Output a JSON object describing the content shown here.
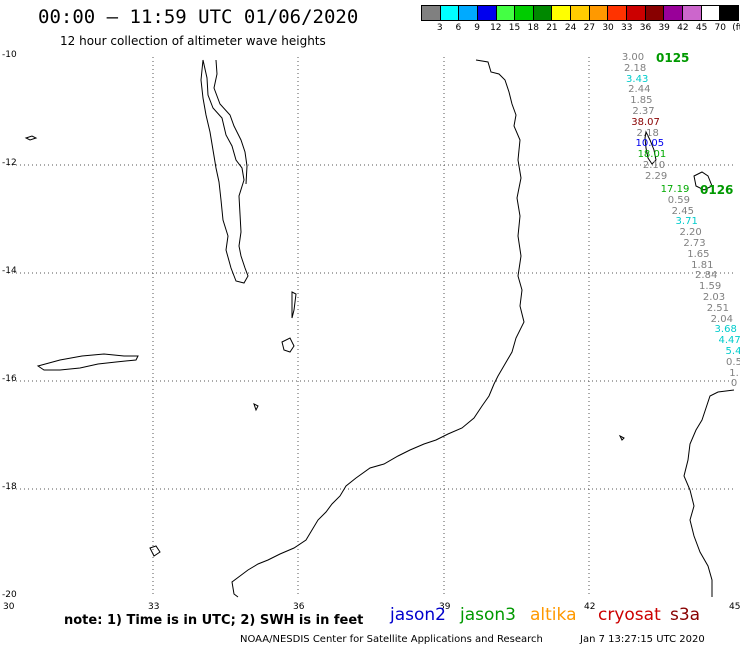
{
  "header": {
    "title": "00:00 – 11:59 UTC 01/06/2020",
    "subtitle": "12 hour collection of altimeter wave heights"
  },
  "scale": {
    "colors": [
      "#808080",
      "#00ffff",
      "#00aaff",
      "#0000ee",
      "#44ff44",
      "#00cc00",
      "#008800",
      "#ffff00",
      "#ffcc00",
      "#ff9900",
      "#ff3300",
      "#cc0000",
      "#880000",
      "#990099",
      "#cc66cc",
      "#ffffff",
      "#000000"
    ],
    "labels": [
      "3",
      "6",
      "9",
      "12",
      "15",
      "18",
      "21",
      "24",
      "27",
      "30",
      "33",
      "36",
      "39",
      "42",
      "45",
      "70",
      "(ft)"
    ]
  },
  "axes": {
    "lon": [
      "30",
      "33",
      "36",
      "39",
      "42",
      "45"
    ],
    "lat": [
      "-10",
      "-12",
      "-14",
      "-16",
      "-18",
      "-20"
    ]
  },
  "tracks": [
    {
      "pass": "0125",
      "values": [
        {
          "v": "3.00",
          "c": "#808080"
        },
        {
          "v": "2.18",
          "c": "#808080"
        },
        {
          "v": "3.43",
          "c": "#00cccc"
        },
        {
          "v": "2.44",
          "c": "#808080"
        },
        {
          "v": "1.85",
          "c": "#808080"
        },
        {
          "v": "2.37",
          "c": "#808080"
        },
        {
          "v": "38.07",
          "c": "#880000"
        },
        {
          "v": "2.18",
          "c": "#808080"
        },
        {
          "v": "10.05",
          "c": "#0000ee"
        },
        {
          "v": "18.01",
          "c": "#00aa00"
        },
        {
          "v": "2.10",
          "c": "#808080"
        },
        {
          "v": "2.29",
          "c": "#808080"
        }
      ]
    },
    {
      "pass": "0126",
      "values": [
        {
          "v": "17.19",
          "c": "#00aa00"
        },
        {
          "v": "0.59",
          "c": "#808080"
        },
        {
          "v": "2.45",
          "c": "#808080"
        },
        {
          "v": "3.71",
          "c": "#00cccc"
        },
        {
          "v": "2.20",
          "c": "#808080"
        },
        {
          "v": "2.73",
          "c": "#808080"
        },
        {
          "v": "1.65",
          "c": "#808080"
        },
        {
          "v": "1.81",
          "c": "#808080"
        },
        {
          "v": "2.84",
          "c": "#808080"
        },
        {
          "v": "1.59",
          "c": "#808080"
        },
        {
          "v": "2.03",
          "c": "#808080"
        },
        {
          "v": "2.51",
          "c": "#808080"
        },
        {
          "v": "2.04",
          "c": "#808080"
        },
        {
          "v": "3.68",
          "c": "#00cccc"
        },
        {
          "v": "4.47",
          "c": "#00cccc"
        },
        {
          "v": "5.4",
          "c": "#00cccc"
        },
        {
          "v": "0.5",
          "c": "#808080"
        },
        {
          "v": "1.",
          "c": "#808080"
        },
        {
          "v": "0",
          "c": "#808080"
        }
      ]
    }
  ],
  "footer": {
    "note": "note:  1) Time is in UTC;  2) SWH is in feet",
    "satellites": [
      {
        "name": "jason2",
        "color": "#0000cc"
      },
      {
        "name": "jason3",
        "color": "#009900"
      },
      {
        "name": "altika",
        "color": "#ff9900"
      },
      {
        "name": "cryosat",
        "color": "#cc0000"
      },
      {
        "name": "s3a",
        "color": "#880000"
      }
    ],
    "credit": "NOAA/NESDIS Center for Satellite Applications and Research",
    "timestamp": "Jan  7 13:27:15 UTC 2020"
  }
}
